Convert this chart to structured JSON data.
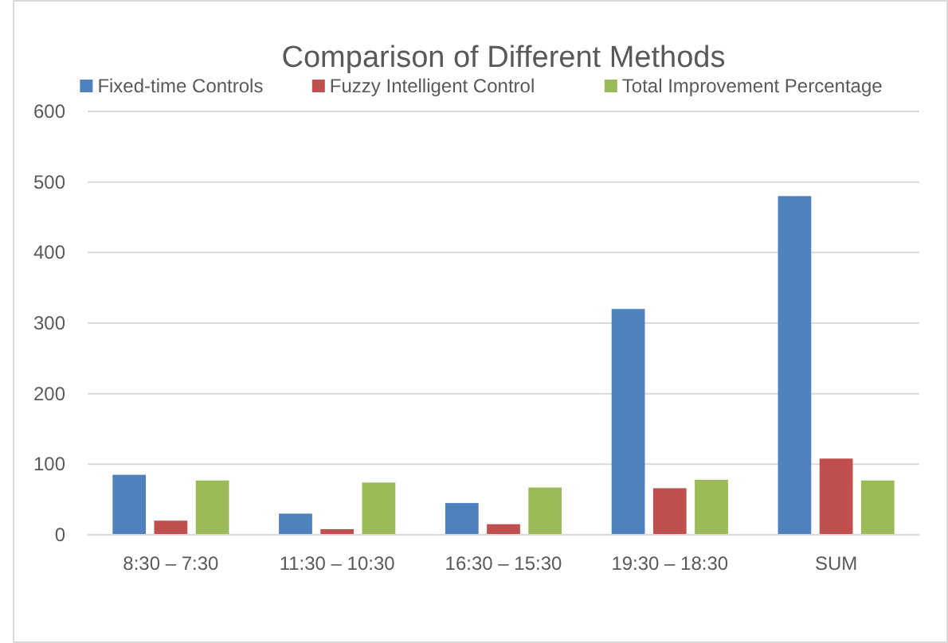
{
  "chart_data": {
    "type": "bar",
    "title": "Comparison of Different Methods",
    "categories": [
      "8:30 – 7:30",
      "11:30 – 10:30",
      "16:30 – 15:30",
      "19:30 – 18:30",
      "SUM"
    ],
    "series": [
      {
        "name": "Fixed-time Controls",
        "color": "#4f81bd",
        "values": [
          85,
          30,
          45,
          320,
          480
        ]
      },
      {
        "name": "Fuzzy Intelligent Control",
        "color": "#c0504d",
        "values": [
          20,
          8,
          15,
          66,
          108
        ]
      },
      {
        "name": "Total Improvement Percentage",
        "color": "#9bbb59",
        "values": [
          77,
          74,
          67,
          78,
          77
        ]
      }
    ],
    "ylim": [
      0,
      600
    ],
    "yticks": [
      0,
      100,
      200,
      300,
      400,
      500,
      600
    ],
    "grid": "y",
    "legend": "top"
  }
}
